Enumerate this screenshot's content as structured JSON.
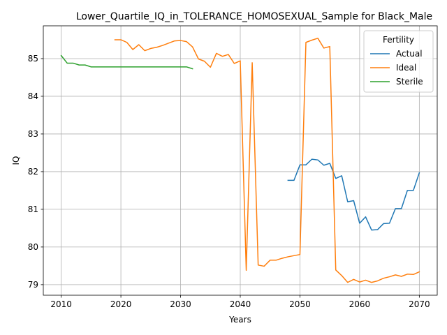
{
  "chart_data": {
    "type": "line",
    "title": "Lower_Quartile_IQ_in_TOLERANCE_HOMOSEXUAL_Sample for Black_Male",
    "xlabel": "Years",
    "ylabel": "IQ",
    "xlim": [
      2007,
      2073
    ],
    "ylim": [
      78.72,
      85.87
    ],
    "xticks": [
      2010,
      2020,
      2030,
      2040,
      2050,
      2060,
      2070
    ],
    "yticks": [
      79,
      80,
      81,
      82,
      83,
      84,
      85
    ],
    "grid": true,
    "legend": {
      "title": "Fertility",
      "placement": "top-right"
    },
    "series": [
      {
        "name": "Actual",
        "color": "#1f77b4",
        "x": [
          2048,
          2049,
          2050,
          2051,
          2052,
          2053,
          2054,
          2055,
          2056,
          2057,
          2058,
          2059,
          2060,
          2061,
          2062,
          2063,
          2064,
          2065,
          2066,
          2067,
          2068,
          2069,
          2070
        ],
        "y": [
          81.77,
          81.77,
          82.18,
          82.18,
          82.33,
          82.31,
          82.17,
          82.22,
          81.82,
          81.89,
          81.2,
          81.23,
          80.63,
          80.8,
          80.45,
          80.46,
          80.62,
          80.63,
          81.02,
          81.02,
          81.5,
          81.5,
          81.97
        ]
      },
      {
        "name": "Ideal",
        "color": "#ff7f0e",
        "x": [
          2019,
          2020,
          2021,
          2022,
          2023,
          2024,
          2025,
          2026,
          2027,
          2028,
          2029,
          2030,
          2031,
          2032,
          2033,
          2034,
          2035,
          2036,
          2037,
          2038,
          2039,
          2040,
          2041,
          2042,
          2043,
          2044,
          2045,
          2046,
          2047,
          2048,
          2049,
          2050,
          2051,
          2052,
          2053,
          2054,
          2055,
          2056,
          2057,
          2058,
          2059,
          2060,
          2061,
          2062,
          2063,
          2064,
          2065,
          2066,
          2067,
          2068,
          2069,
          2070
        ],
        "y": [
          85.5,
          85.5,
          85.43,
          85.24,
          85.37,
          85.21,
          85.27,
          85.3,
          85.35,
          85.41,
          85.47,
          85.48,
          85.45,
          85.31,
          84.99,
          84.93,
          84.77,
          85.14,
          85.06,
          85.11,
          84.87,
          84.94,
          79.38,
          84.89,
          79.52,
          79.49,
          79.65,
          79.65,
          79.7,
          79.74,
          79.77,
          79.8,
          85.43,
          85.49,
          85.54,
          85.28,
          85.32,
          79.39,
          79.24,
          79.06,
          79.14,
          79.07,
          79.12,
          79.06,
          79.1,
          79.17,
          79.21,
          79.26,
          79.22,
          79.28,
          79.27,
          79.34
        ]
      },
      {
        "name": "Sterile",
        "color": "#2ca02c",
        "x": [
          2010,
          2011,
          2012,
          2013,
          2014,
          2015,
          2016,
          2017,
          2018,
          2019,
          2020,
          2021,
          2022,
          2023,
          2024,
          2025,
          2026,
          2027,
          2028,
          2029,
          2030,
          2031,
          2032
        ],
        "y": [
          85.08,
          84.88,
          84.88,
          84.83,
          84.83,
          84.78,
          84.78,
          84.78,
          84.78,
          84.78,
          84.78,
          84.78,
          84.78,
          84.78,
          84.78,
          84.78,
          84.78,
          84.78,
          84.78,
          84.78,
          84.78,
          84.78,
          84.73
        ]
      }
    ]
  }
}
